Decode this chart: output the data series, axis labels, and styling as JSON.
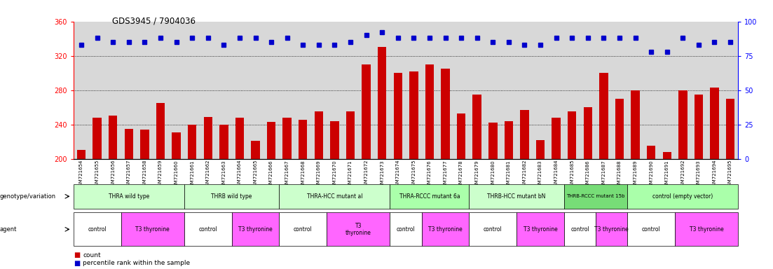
{
  "title": "GDS3945 / 7904036",
  "samples": [
    "GSM721654",
    "GSM721655",
    "GSM721656",
    "GSM721657",
    "GSM721658",
    "GSM721659",
    "GSM721660",
    "GSM721661",
    "GSM721662",
    "GSM721663",
    "GSM721664",
    "GSM721665",
    "GSM721666",
    "GSM721667",
    "GSM721668",
    "GSM721669",
    "GSM721670",
    "GSM721671",
    "GSM721672",
    "GSM721673",
    "GSM721674",
    "GSM721675",
    "GSM721676",
    "GSM721677",
    "GSM721678",
    "GSM721679",
    "GSM721680",
    "GSM721681",
    "GSM721682",
    "GSM721683",
    "GSM721684",
    "GSM721685",
    "GSM721686",
    "GSM721687",
    "GSM721688",
    "GSM721689",
    "GSM721690",
    "GSM721691",
    "GSM721692",
    "GSM721693",
    "GSM721694",
    "GSM721695"
  ],
  "counts": [
    210,
    248,
    250,
    235,
    234,
    265,
    231,
    240,
    249,
    240,
    248,
    221,
    243,
    248,
    245,
    255,
    244,
    255,
    310,
    330,
    300,
    302,
    310,
    305,
    253,
    275,
    242,
    244,
    257,
    222,
    248,
    255,
    260,
    300,
    270,
    280,
    215,
    208,
    280,
    275,
    283,
    270
  ],
  "percentiles": [
    83,
    88,
    85,
    85,
    85,
    88,
    85,
    88,
    88,
    83,
    88,
    88,
    85,
    88,
    83,
    83,
    83,
    85,
    90,
    92,
    88,
    88,
    88,
    88,
    88,
    88,
    85,
    85,
    83,
    83,
    88,
    88,
    88,
    88,
    88,
    88,
    78,
    78,
    88,
    83,
    85,
    85
  ],
  "ylim_left": [
    200,
    360
  ],
  "ylim_right": [
    0,
    100
  ],
  "yticks_left": [
    200,
    240,
    280,
    320,
    360
  ],
  "yticks_right": [
    0,
    25,
    50,
    75,
    100
  ],
  "bar_color": "#cc0000",
  "marker_color": "#0000cc",
  "bg_color": "#d8d8d8",
  "genotype_groups": [
    {
      "label": "THRA wild type",
      "start": 0,
      "end": 7,
      "color": "#ccffcc"
    },
    {
      "label": "THRB wild type",
      "start": 7,
      "end": 13,
      "color": "#ccffcc"
    },
    {
      "label": "THRA-HCC mutant al",
      "start": 13,
      "end": 20,
      "color": "#ccffcc"
    },
    {
      "label": "THRA-RCCC mutant 6a",
      "start": 20,
      "end": 25,
      "color": "#aaffaa"
    },
    {
      "label": "THRB-HCC mutant bN",
      "start": 25,
      "end": 31,
      "color": "#ccffcc"
    },
    {
      "label": "THRB-RCCC mutant 15b",
      "start": 31,
      "end": 35,
      "color": "#77dd77"
    },
    {
      "label": "control (empty vector)",
      "start": 35,
      "end": 42,
      "color": "#aaffaa"
    }
  ],
  "agent_groups": [
    {
      "label": "control",
      "start": 0,
      "end": 3,
      "color": "#ffffff"
    },
    {
      "label": "T3 thyronine",
      "start": 3,
      "end": 7,
      "color": "#ff66ff"
    },
    {
      "label": "control",
      "start": 7,
      "end": 10,
      "color": "#ffffff"
    },
    {
      "label": "T3 thyronine",
      "start": 10,
      "end": 13,
      "color": "#ff66ff"
    },
    {
      "label": "control",
      "start": 13,
      "end": 16,
      "color": "#ffffff"
    },
    {
      "label": "T3\nthyronine",
      "start": 16,
      "end": 20,
      "color": "#ff66ff"
    },
    {
      "label": "control",
      "start": 20,
      "end": 22,
      "color": "#ffffff"
    },
    {
      "label": "T3 thyronine",
      "start": 22,
      "end": 25,
      "color": "#ff66ff"
    },
    {
      "label": "control",
      "start": 25,
      "end": 28,
      "color": "#ffffff"
    },
    {
      "label": "T3 thyronine",
      "start": 28,
      "end": 31,
      "color": "#ff66ff"
    },
    {
      "label": "control",
      "start": 31,
      "end": 33,
      "color": "#ffffff"
    },
    {
      "label": "T3 thyronine",
      "start": 33,
      "end": 35,
      "color": "#ff66ff"
    },
    {
      "label": "control",
      "start": 35,
      "end": 38,
      "color": "#ffffff"
    },
    {
      "label": "T3 thyronine",
      "start": 38,
      "end": 42,
      "color": "#ff66ff"
    }
  ]
}
